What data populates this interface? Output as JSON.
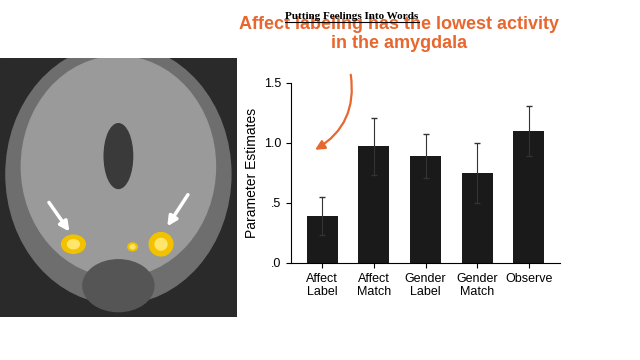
{
  "chart_data": {
    "type": "bar",
    "title": "Putting Feelings Into Words",
    "annotation": "Affect labeling has the lowest activity\nin the amygdala",
    "categories": [
      "Affect\nLabel",
      "Affect\nMatch",
      "Gender\nLabel",
      "Gender\nMatch",
      "Observe"
    ],
    "values": [
      0.39,
      0.97,
      0.89,
      0.75,
      1.1
    ],
    "errors": [
      0.16,
      0.24,
      0.18,
      0.25,
      0.21
    ],
    "color": "#1a1a1a",
    "y_label": "Parameter Estimates",
    "ylim": [
      0,
      1.5
    ],
    "yticks": [
      {
        "value": 0,
        "label": ".0"
      },
      {
        "value": 0.5,
        "label": ".5"
      },
      {
        "value": 1.0,
        "label": "1.0"
      },
      {
        "value": 1.5,
        "label": "1.5"
      }
    ]
  }
}
